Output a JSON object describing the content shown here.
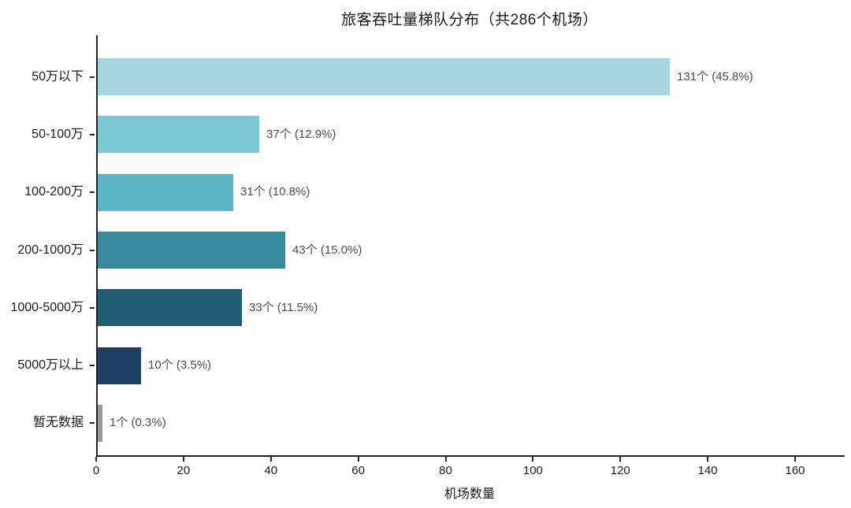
{
  "title": "旅客吞吐量梯队分布（共286个机场）",
  "chart_data": {
    "type": "bar",
    "orientation": "horizontal",
    "title": "旅客吞吐量梯队分布（共286个机场）",
    "total_airports": 286,
    "categories": [
      "50万以下",
      "50-100万",
      "100-200万",
      "200-1000万",
      "1000-5000万",
      "5000万以上",
      "暂无数据"
    ],
    "values": [
      131,
      37,
      31,
      43,
      33,
      10,
      1
    ],
    "percentages": [
      45.8,
      12.9,
      10.8,
      15.0,
      11.5,
      3.5,
      0.3
    ],
    "value_labels": [
      "131个 (45.8%)",
      "37个 (12.9%)",
      "31个 (10.8%)",
      "43个 (15.0%)",
      "33个 (11.5%)",
      "10个 (3.5%)",
      "1个 (0.3%)"
    ],
    "bar_colors": [
      "#a7d6e2",
      "#7cc8d6",
      "#59b7c5",
      "#38899b",
      "#1f5d72",
      "#1e3f63",
      "#9a9a9a"
    ],
    "xlabel": "机场数量",
    "ylabel": "",
    "x_ticks": [
      0,
      20,
      40,
      60,
      80,
      100,
      120,
      140,
      160
    ],
    "xlim": [
      0,
      171
    ],
    "grid": false,
    "legend": null,
    "spine_color": "#262626",
    "value_label_color": "#4d4d4d"
  }
}
